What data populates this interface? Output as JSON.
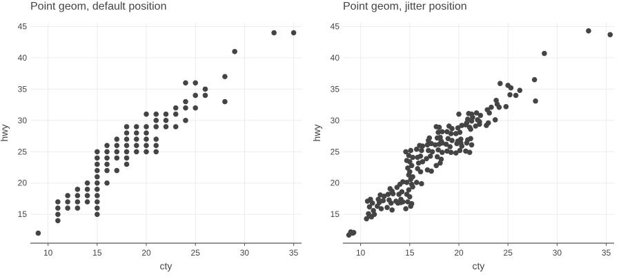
{
  "chart_data": [
    {
      "type": "scatter",
      "title": "Point geom, default position",
      "xlabel": "cty",
      "ylabel": "hwy",
      "xlim": [
        8.2,
        35.8
      ],
      "ylim": [
        10.4,
        45.6
      ],
      "x_ticks": [
        10,
        15,
        20,
        25,
        30,
        35
      ],
      "y_ticks": [
        15,
        20,
        25,
        30,
        35,
        40,
        45
      ],
      "grid": true,
      "point_color": "#444444",
      "points": [
        [
          9,
          12
        ],
        [
          11,
          14
        ],
        [
          11,
          15
        ],
        [
          11,
          16
        ],
        [
          11,
          17
        ],
        [
          12,
          16
        ],
        [
          12,
          17
        ],
        [
          12,
          18
        ],
        [
          13,
          16
        ],
        [
          13,
          17
        ],
        [
          13,
          18
        ],
        [
          13,
          19
        ],
        [
          14,
          17
        ],
        [
          14,
          18
        ],
        [
          14,
          19
        ],
        [
          14,
          20
        ],
        [
          15,
          15
        ],
        [
          15,
          16
        ],
        [
          15,
          17
        ],
        [
          15,
          18
        ],
        [
          15,
          19
        ],
        [
          15,
          20
        ],
        [
          15,
          21
        ],
        [
          15,
          22
        ],
        [
          15,
          23
        ],
        [
          15,
          24
        ],
        [
          15,
          25
        ],
        [
          16,
          20
        ],
        [
          16,
          22
        ],
        [
          16,
          23
        ],
        [
          16,
          24
        ],
        [
          16,
          25
        ],
        [
          16,
          26
        ],
        [
          17,
          22
        ],
        [
          17,
          24
        ],
        [
          17,
          25
        ],
        [
          17,
          26
        ],
        [
          17,
          27
        ],
        [
          18,
          23
        ],
        [
          18,
          24
        ],
        [
          18,
          25
        ],
        [
          18,
          26
        ],
        [
          18,
          27
        ],
        [
          18,
          28
        ],
        [
          18,
          29
        ],
        [
          19,
          25
        ],
        [
          19,
          26
        ],
        [
          19,
          27
        ],
        [
          19,
          28
        ],
        [
          19,
          29
        ],
        [
          20,
          25
        ],
        [
          20,
          26
        ],
        [
          20,
          27
        ],
        [
          20,
          28
        ],
        [
          20,
          29
        ],
        [
          20,
          31
        ],
        [
          21,
          25
        ],
        [
          21,
          26
        ],
        [
          21,
          27
        ],
        [
          21,
          29
        ],
        [
          21,
          30
        ],
        [
          21,
          31
        ],
        [
          22,
          29
        ],
        [
          22,
          30
        ],
        [
          22,
          31
        ],
        [
          23,
          29
        ],
        [
          23,
          31
        ],
        [
          23,
          32
        ],
        [
          24,
          30
        ],
        [
          24,
          32
        ],
        [
          24,
          33
        ],
        [
          24,
          36
        ],
        [
          25,
          32
        ],
        [
          25,
          34
        ],
        [
          25,
          36
        ],
        [
          26,
          34
        ],
        [
          26,
          35
        ],
        [
          28,
          33
        ],
        [
          28,
          37
        ],
        [
          29,
          41
        ],
        [
          33,
          44
        ],
        [
          35,
          44
        ]
      ]
    },
    {
      "type": "scatter",
      "title": "Point geom, jitter position",
      "xlabel": "cty",
      "ylabel": "hwy",
      "xlim": [
        8.2,
        35.8
      ],
      "ylim": [
        10.4,
        45.6
      ],
      "x_ticks": [
        10,
        15,
        20,
        25,
        30,
        35
      ],
      "y_ticks": [
        15,
        20,
        25,
        30,
        35,
        40,
        45
      ],
      "grid": true,
      "point_color": "#444444",
      "points": [
        [
          8.8,
          11.7
        ],
        [
          9.0,
          12.2
        ],
        [
          9.2,
          12.0
        ],
        [
          9.3,
          12.1
        ],
        [
          10.6,
          14.3
        ],
        [
          10.8,
          15.1
        ],
        [
          11.1,
          14.6
        ],
        [
          11.3,
          15.6
        ],
        [
          10.9,
          16.2
        ],
        [
          11.2,
          16.8
        ],
        [
          10.7,
          17.1
        ],
        [
          11.0,
          17.4
        ],
        [
          11.4,
          15.0
        ],
        [
          10.9,
          14.8
        ],
        [
          11.7,
          16.3
        ],
        [
          12.1,
          15.9
        ],
        [
          12.3,
          17.2
        ],
        [
          11.8,
          17.4
        ],
        [
          12.0,
          18.1
        ],
        [
          12.4,
          17.9
        ],
        [
          11.9,
          16.9
        ],
        [
          12.7,
          16.1
        ],
        [
          13.2,
          15.7
        ],
        [
          12.9,
          17.3
        ],
        [
          13.1,
          16.8
        ],
        [
          13.3,
          18.3
        ],
        [
          12.8,
          18.2
        ],
        [
          13.0,
          19.1
        ],
        [
          13.2,
          18.7
        ],
        [
          13.8,
          16.8
        ],
        [
          14.1,
          17.4
        ],
        [
          14.3,
          17.0
        ],
        [
          13.9,
          18.2
        ],
        [
          14.2,
          18.6
        ],
        [
          13.7,
          19.3
        ],
        [
          14.0,
          19.8
        ],
        [
          14.3,
          20.2
        ],
        [
          14.1,
          16.9
        ],
        [
          13.6,
          17.1
        ],
        [
          14.6,
          15.9
        ],
        [
          15.1,
          16.3
        ],
        [
          14.8,
          17.0
        ],
        [
          15.2,
          16.7
        ],
        [
          14.7,
          18.2
        ],
        [
          15.0,
          17.8
        ],
        [
          14.9,
          18.9
        ],
        [
          15.3,
          19.4
        ],
        [
          14.7,
          20.1
        ],
        [
          15.1,
          20.6
        ],
        [
          14.9,
          21.3
        ],
        [
          15.3,
          21.0
        ],
        [
          14.8,
          22.4
        ],
        [
          15.2,
          22.8
        ],
        [
          15.0,
          23.4
        ],
        [
          14.7,
          23.6
        ],
        [
          15.3,
          24.1
        ],
        [
          14.9,
          24.4
        ],
        [
          15.1,
          25.2
        ],
        [
          14.6,
          25.0
        ],
        [
          15.2,
          19.8
        ],
        [
          15.0,
          21.8
        ],
        [
          15.7,
          20.1
        ],
        [
          16.2,
          19.9
        ],
        [
          15.8,
          22.3
        ],
        [
          16.1,
          21.8
        ],
        [
          15.9,
          23.2
        ],
        [
          16.3,
          23.4
        ],
        [
          15.8,
          24.1
        ],
        [
          16.1,
          24.3
        ],
        [
          16.2,
          25.2
        ],
        [
          15.7,
          25.4
        ],
        [
          16.0,
          26.0
        ],
        [
          16.3,
          25.9
        ],
        [
          16.8,
          22.1
        ],
        [
          17.2,
          21.9
        ],
        [
          16.7,
          23.9
        ],
        [
          17.1,
          24.3
        ],
        [
          16.9,
          25.2
        ],
        [
          17.3,
          25.0
        ],
        [
          16.8,
          26.1
        ],
        [
          17.2,
          26.3
        ],
        [
          17.0,
          27.2
        ],
        [
          16.9,
          26.8
        ],
        [
          17.7,
          22.8
        ],
        [
          18.1,
          23.2
        ],
        [
          17.8,
          24.2
        ],
        [
          18.2,
          23.8
        ],
        [
          17.9,
          25.3
        ],
        [
          18.3,
          24.9
        ],
        [
          17.6,
          26.1
        ],
        [
          18.0,
          26.2
        ],
        [
          18.2,
          26.7
        ],
        [
          17.8,
          27.2
        ],
        [
          18.1,
          27.3
        ],
        [
          17.9,
          28.1
        ],
        [
          18.3,
          28.2
        ],
        [
          18.0,
          28.9
        ],
        [
          17.7,
          29.0
        ],
        [
          18.3,
          26.4
        ],
        [
          18.8,
          25.1
        ],
        [
          19.2,
          24.9
        ],
        [
          18.7,
          26.2
        ],
        [
          19.1,
          25.8
        ],
        [
          19.3,
          26.8
        ],
        [
          18.9,
          27.1
        ],
        [
          19.2,
          27.9
        ],
        [
          18.8,
          28.2
        ],
        [
          19.0,
          29.1
        ],
        [
          19.3,
          28.7
        ],
        [
          19.7,
          24.8
        ],
        [
          20.1,
          25.2
        ],
        [
          20.3,
          25.9
        ],
        [
          19.8,
          26.3
        ],
        [
          20.2,
          27.0
        ],
        [
          19.9,
          26.7
        ],
        [
          20.1,
          28.1
        ],
        [
          19.7,
          27.9
        ],
        [
          20.3,
          29.2
        ],
        [
          19.9,
          28.8
        ],
        [
          20.0,
          31.0
        ],
        [
          20.2,
          26.4
        ],
        [
          20.7,
          25.1
        ],
        [
          21.1,
          24.9
        ],
        [
          21.3,
          26.1
        ],
        [
          20.8,
          26.4
        ],
        [
          21.2,
          27.1
        ],
        [
          20.9,
          26.9
        ],
        [
          21.1,
          28.9
        ],
        [
          20.7,
          29.3
        ],
        [
          21.3,
          29.9
        ],
        [
          20.9,
          30.2
        ],
        [
          21.0,
          31.1
        ],
        [
          21.3,
          31.0
        ],
        [
          20.8,
          29.6
        ],
        [
          21.4,
          30.5
        ],
        [
          21.2,
          28.6
        ],
        [
          21.7,
          29.1
        ],
        [
          22.1,
          29.4
        ],
        [
          21.9,
          30.1
        ],
        [
          22.2,
          30.8
        ],
        [
          21.8,
          31.2
        ],
        [
          22.1,
          29.8
        ],
        [
          22.8,
          29.2
        ],
        [
          23.1,
          31.2
        ],
        [
          22.9,
          31.7
        ],
        [
          23.3,
          32.1
        ],
        [
          23.0,
          29.6
        ],
        [
          23.7,
          30.1
        ],
        [
          24.1,
          32.1
        ],
        [
          23.8,
          33.2
        ],
        [
          24.2,
          35.9
        ],
        [
          23.9,
          32.6
        ],
        [
          24.8,
          32.2
        ],
        [
          25.2,
          34.1
        ],
        [
          25.0,
          35.6
        ],
        [
          25.3,
          35.2
        ],
        [
          25.8,
          34.0
        ],
        [
          26.2,
          34.8
        ],
        [
          27.8,
          33.1
        ],
        [
          27.7,
          36.5
        ],
        [
          28.7,
          40.7
        ],
        [
          33.2,
          44.3
        ],
        [
          35.4,
          43.7
        ]
      ]
    }
  ]
}
